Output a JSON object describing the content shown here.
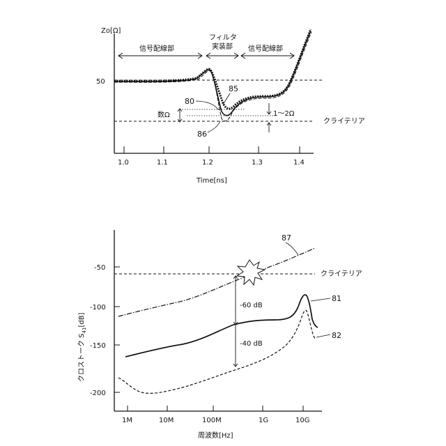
{
  "top": {
    "y_axis_label": "Zo[Ω]",
    "y_tick_50": "50",
    "x_ticks": [
      "1.0",
      "1.1",
      "1.2",
      "1.3",
      "1.4"
    ],
    "x_axis_label": "Time[ns]",
    "region_left": "信号配線部",
    "region_mid_line1": "フィルタ",
    "region_mid_line2": "実装部",
    "region_right": "信号配線部",
    "criteria": "クライテリア",
    "few_ohm": "数Ω",
    "one_to_two_ohm": "1～2Ω",
    "ref_80": "80",
    "ref_85": "85",
    "ref_86": "86"
  },
  "bottom": {
    "y_axis_label_main": "クロストーク S",
    "y_axis_label_sub": "41",
    "y_axis_label_unit": "[dB]",
    "y_ticks": [
      "-50",
      "-100",
      "-150",
      "-200"
    ],
    "x_ticks": [
      "1M",
      "10M",
      "100M",
      "1G",
      "10G"
    ],
    "x_axis_label": "周波数[Hz]",
    "criteria": "クライテリア",
    "minus60": "-60 dB",
    "minus40": "-40 dB",
    "ref_87": "87",
    "ref_81": "81",
    "ref_82": "82"
  }
}
